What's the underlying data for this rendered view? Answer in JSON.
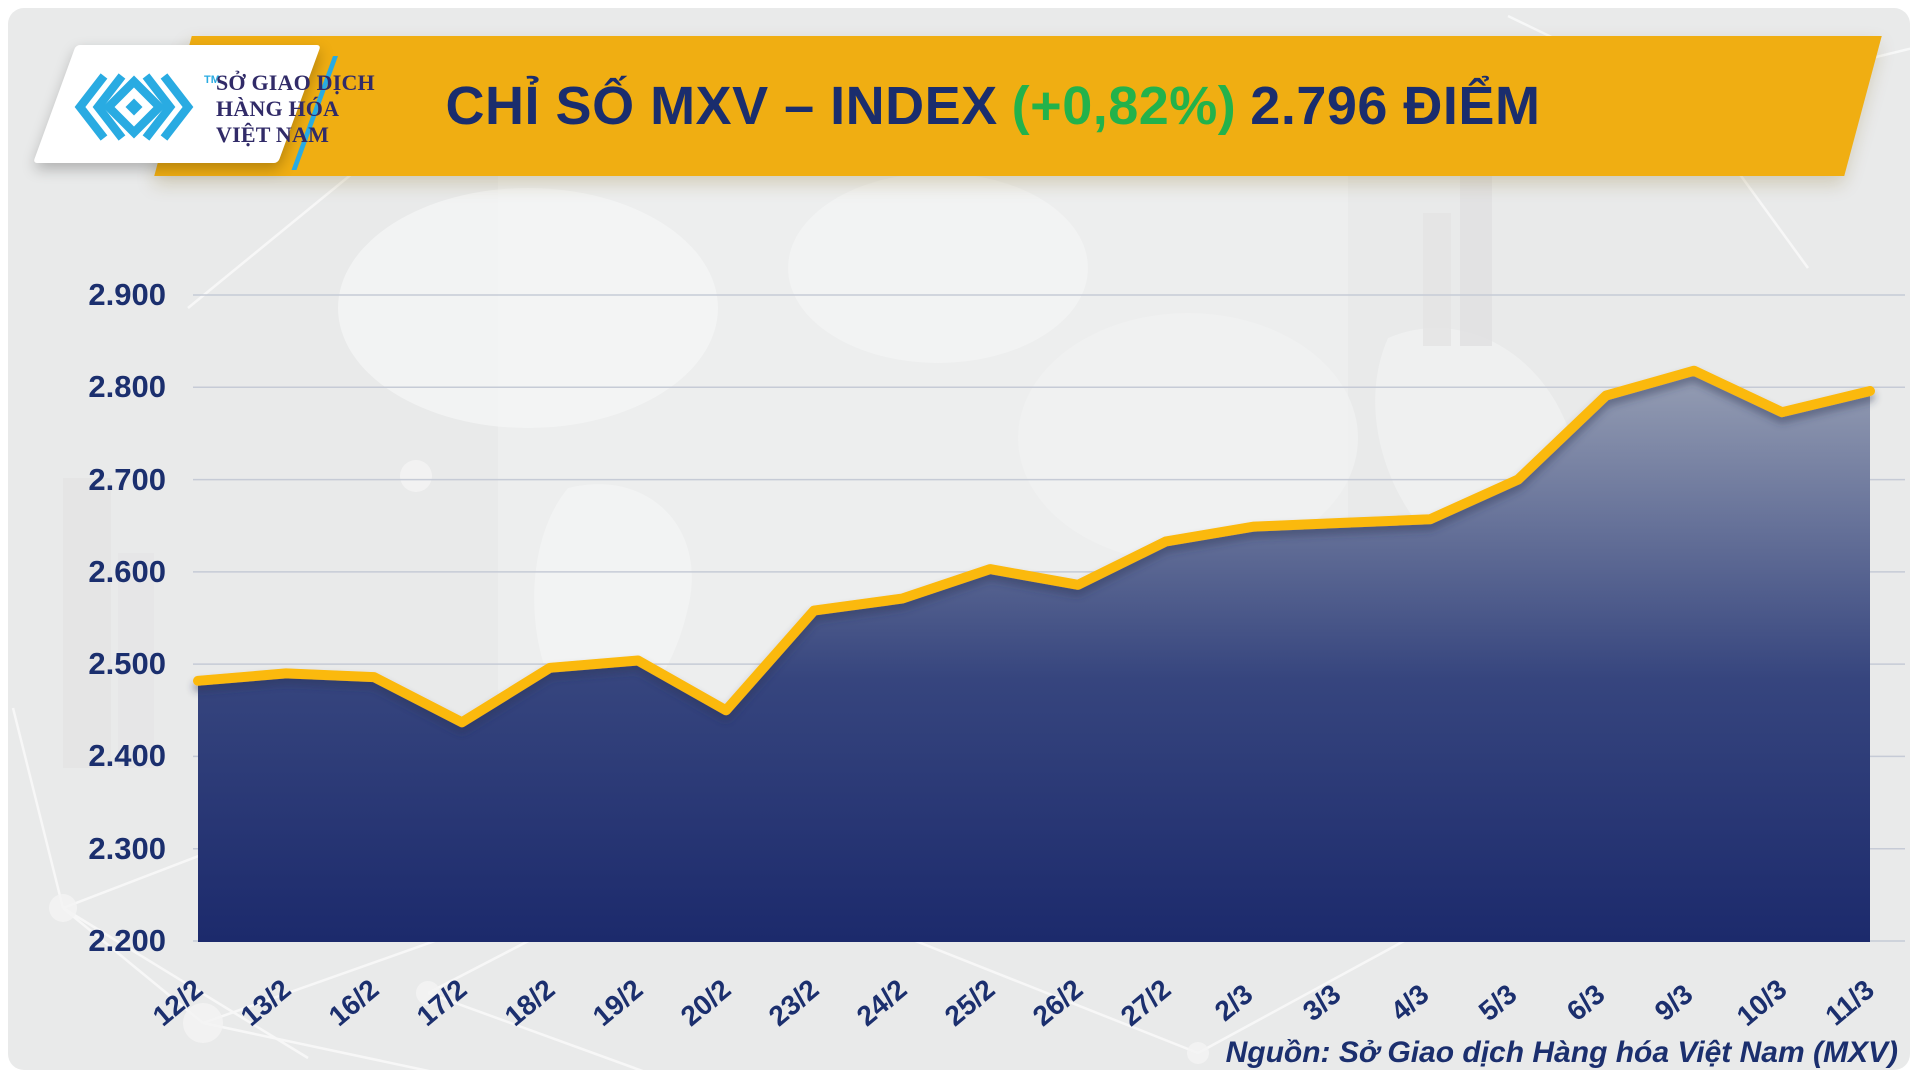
{
  "brand": {
    "org_lines": [
      "SỞ GIAO DỊCH",
      "HÀNG HÓA",
      "VIỆT NAM"
    ],
    "trademark": "TM",
    "logo_color": "#29ABE2",
    "text_color": "#312b68"
  },
  "banner": {
    "title_main": "CHỈ SỐ MXV – INDEX",
    "title_change": "(+0,82%)",
    "title_value": "2.796 ĐIỂM",
    "background": "#F0AE12",
    "text_color": "#1A2D6D",
    "change_color": "#23B24B"
  },
  "chart_data": {
    "type": "area",
    "title": "CHỈ SỐ MXV – INDEX (+0,82%) 2.796 ĐIỂM",
    "categories": [
      "12/2",
      "13/2",
      "16/2",
      "17/2",
      "18/2",
      "19/2",
      "20/2",
      "23/2",
      "24/2",
      "25/2",
      "26/2",
      "27/2",
      "2/3",
      "3/3",
      "4/3",
      "5/3",
      "6/3",
      "9/3",
      "10/3",
      "11/3"
    ],
    "values": [
      2482,
      2490,
      2486,
      2437,
      2496,
      2504,
      2450,
      2558,
      2571,
      2603,
      2586,
      2633,
      2649,
      2653,
      2657,
      2700,
      2791,
      2818,
      2773,
      2796
    ],
    "last_value_label": "2.796",
    "change_label": "+0,82%",
    "ylim": [
      2200,
      2900
    ],
    "y_tick_values": [
      2900,
      2800,
      2700,
      2600,
      2500,
      2400,
      2300,
      2200
    ],
    "y_tick_labels": [
      "2.900",
      "2.800",
      "2.700",
      "2.600",
      "2.500",
      "2.400",
      "2.300",
      "2.200"
    ],
    "xlabel": "",
    "ylabel": "",
    "grid": true,
    "legend": false,
    "line_color": "#FBB90F",
    "grid_color": "#c6cbd6",
    "fill_gradient_top": "#9AA2B6",
    "fill_gradient_mid": "#36457E",
    "fill_gradient_bottom": "#1C2A6C"
  },
  "footer": {
    "source": "Nguồn: Sở Giao dịch Hàng hóa Việt Nam (MXV)"
  }
}
